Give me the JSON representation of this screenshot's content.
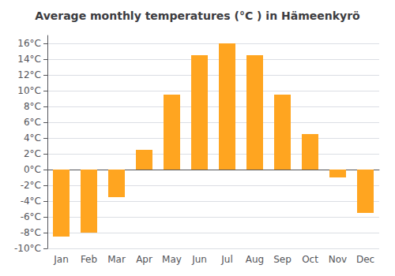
{
  "chart_data": {
    "type": "bar",
    "title": "Average monthly temperatures (°C ) in Hämeenkyrö",
    "categories": [
      "Jan",
      "Feb",
      "Mar",
      "Apr",
      "May",
      "Jun",
      "Jul",
      "Aug",
      "Sep",
      "Oct",
      "Nov",
      "Dec"
    ],
    "values": [
      -8.5,
      -8.0,
      -3.5,
      2.5,
      9.5,
      14.5,
      16.0,
      14.5,
      9.5,
      4.5,
      -1.0,
      -5.5
    ],
    "color": "#FFA520",
    "ylim": [
      -10,
      17
    ],
    "yticks": [
      {
        "value": -10,
        "label": "-10°C"
      },
      {
        "value": -8,
        "label": "-8°C"
      },
      {
        "value": -6,
        "label": "-6°C"
      },
      {
        "value": -4,
        "label": "-4°C"
      },
      {
        "value": -2,
        "label": "-2°C"
      },
      {
        "value": 0,
        "label": "0°C"
      },
      {
        "value": 2,
        "label": "2°C"
      },
      {
        "value": 4,
        "label": "4°C"
      },
      {
        "value": 6,
        "label": "6°C"
      },
      {
        "value": 8,
        "label": "8°C"
      },
      {
        "value": 10,
        "label": "10°C"
      },
      {
        "value": 12,
        "label": "12°C"
      },
      {
        "value": 14,
        "label": "14°C"
      },
      {
        "value": 16,
        "label": "16°C"
      }
    ],
    "grid": true
  }
}
